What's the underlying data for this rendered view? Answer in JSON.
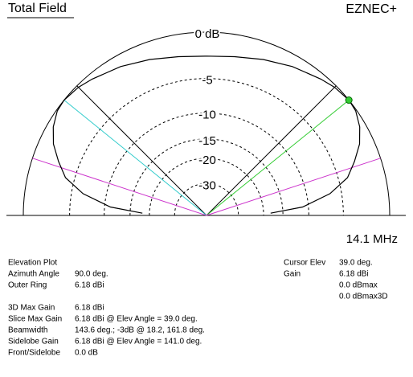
{
  "header": {
    "title": "Total Field",
    "app": "EZNEC+",
    "frequency": "14.1 MHz"
  },
  "chart_data": {
    "type": "polar-elevation",
    "scale": "arrl-log",
    "color": "#000000",
    "theta": [
      2,
      5,
      10,
      15,
      20,
      25,
      30,
      35,
      39,
      45,
      50,
      60,
      70,
      80,
      90,
      100,
      110,
      120,
      130,
      135,
      141,
      145,
      150,
      155,
      160,
      165,
      170,
      175,
      178
    ],
    "values": [
      -18,
      -11,
      -6.5,
      -3.9,
      -2.6,
      -1.4,
      -0.6,
      -0.1,
      0,
      -0.2,
      -0.5,
      -1.1,
      -1.7,
      -2.2,
      -2.4,
      -2.2,
      -1.7,
      -1.1,
      -0.5,
      -0.2,
      0,
      -0.1,
      -0.6,
      -1.4,
      -2.6,
      -3.9,
      -6.5,
      -11,
      -18
    ],
    "rticks": [
      {
        "value": 0,
        "label": "0 dB"
      },
      -5,
      -10,
      -15,
      -20,
      -30
    ],
    "angle_grid": [
      45,
      135
    ],
    "markers": [
      {
        "angle": 39,
        "color": "#33cc33"
      },
      {
        "angle": 141,
        "color": "#33cccc"
      },
      {
        "angle": 18.2,
        "color": "#cc33cc"
      },
      {
        "angle": 161.8,
        "color": "#cc33cc"
      }
    ],
    "cursor": {
      "angle": 39,
      "value": 0,
      "color": "#33cc33"
    }
  },
  "info": {
    "left_top": [
      {
        "label": "Elevation Plot"
      },
      {
        "label": "Azimuth Angle",
        "value": "90.0 deg."
      },
      {
        "label": "Outer Ring",
        "value": "6.18 dBi"
      }
    ],
    "left_bottom": [
      {
        "label": "3D Max Gain",
        "value": "6.18 dBi"
      },
      {
        "label": "Slice Max Gain",
        "value": "6.18 dBi @ Elev Angle = 39.0 deg."
      },
      {
        "label": "Beamwidth",
        "value": "143.6 deg.; -3dB @ 18.2, 161.8 deg."
      },
      {
        "label": "Sidelobe Gain",
        "value": "6.18 dBi @ Elev Angle = 141.0 deg."
      },
      {
        "label": "Front/Sidelobe",
        "value": "0.0 dB"
      }
    ],
    "right": [
      {
        "label": "Cursor Elev",
        "value": "39.0 deg."
      },
      {
        "label": "Gain",
        "value": "6.18 dBi"
      },
      {
        "value": "0.0 dBmax"
      },
      {
        "value": "0.0 dBmax3D"
      }
    ]
  }
}
